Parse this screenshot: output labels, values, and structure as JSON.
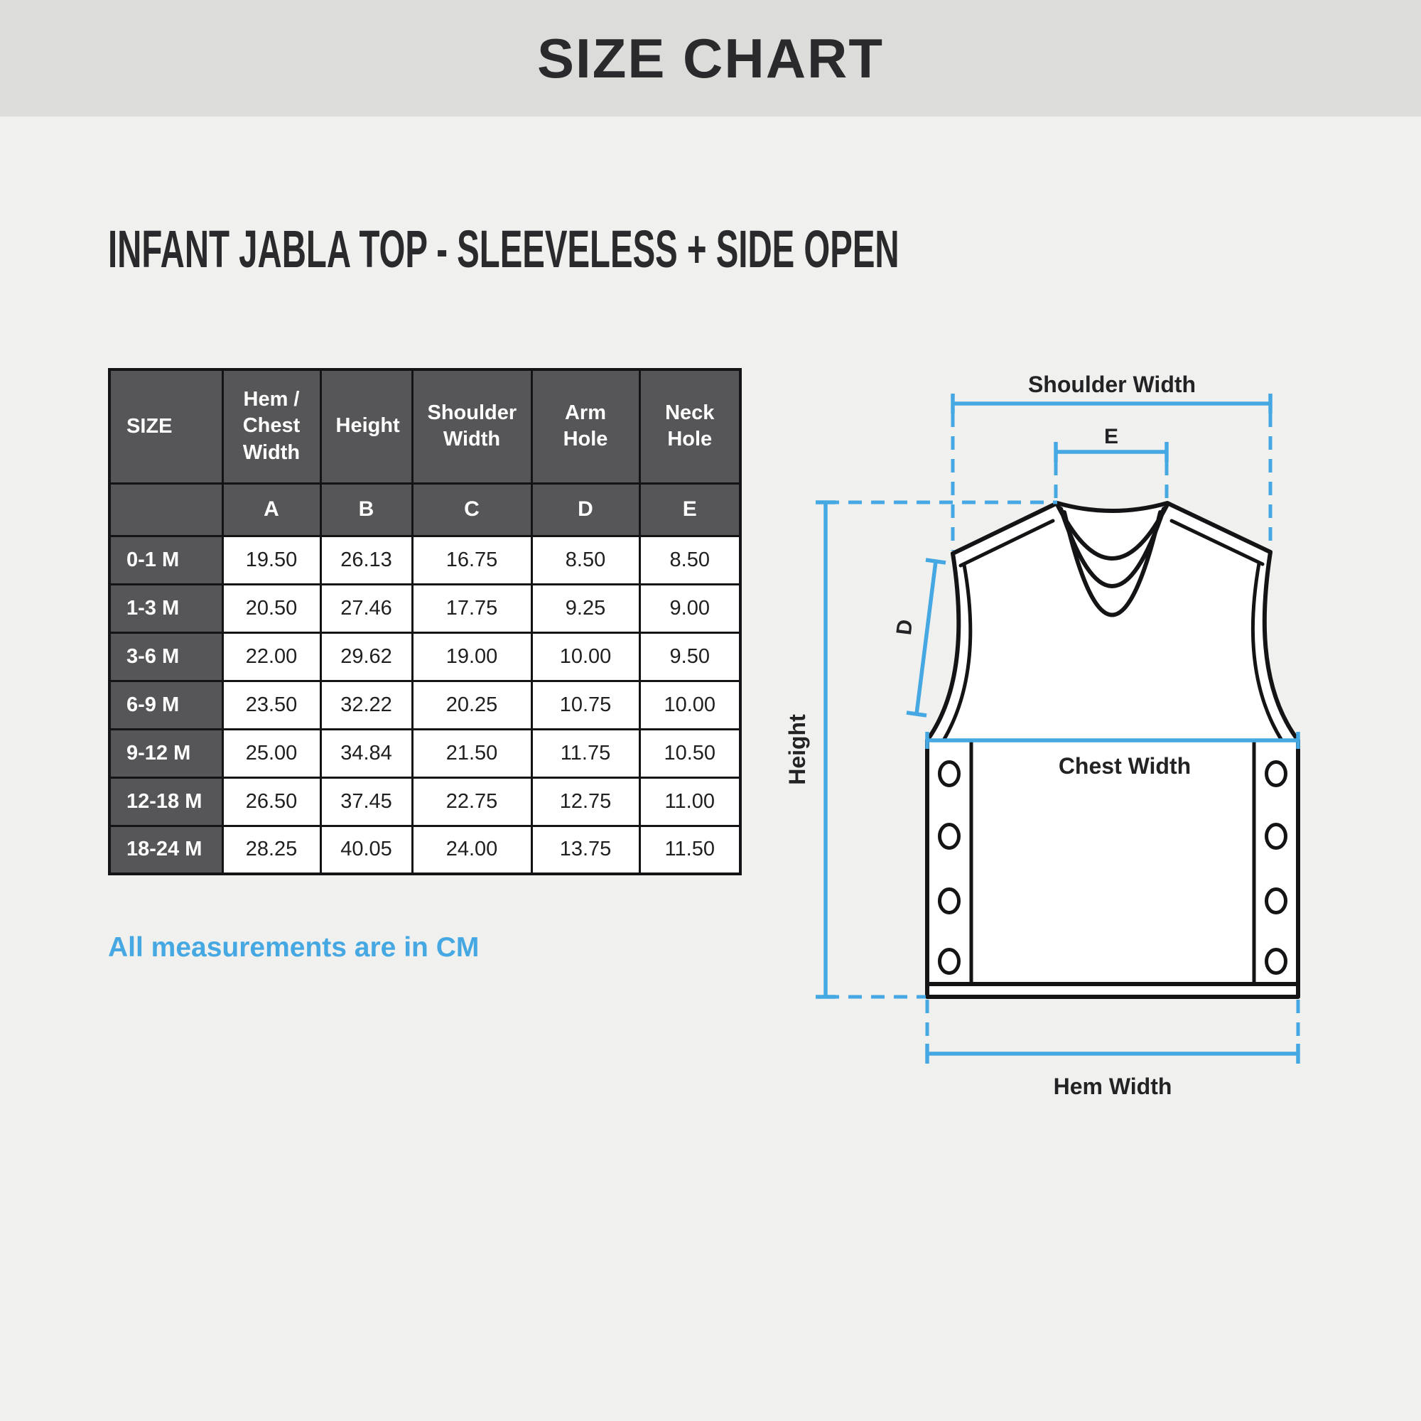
{
  "header": {
    "title": "SIZE CHART"
  },
  "product": {
    "title": "INFANT JABLA TOP - SLEEVELESS + SIDE OPEN"
  },
  "note": "All measurements are in CM",
  "colors": {
    "accent_blue": "#45a8e2",
    "table_header_gray": "#565659",
    "banner_gray": "#dcdcda",
    "page_bg": "#f0f0ee"
  },
  "chart_data": {
    "type": "table",
    "title": "SIZE CHART",
    "subtitle": "INFANT JABLA TOP - SLEEVELESS + SIDE OPEN",
    "unit": "CM",
    "columns": [
      "SIZE",
      "Hem / Chest Width",
      "Height",
      "Shoulder Width",
      "Arm Hole",
      "Neck Hole"
    ],
    "column_letters": [
      "",
      "A",
      "B",
      "C",
      "D",
      "E"
    ],
    "rows": [
      {
        "size": "0-1 M",
        "values": [
          "19.50",
          "26.13",
          "16.75",
          "8.50",
          "8.50"
        ]
      },
      {
        "size": "1-3 M",
        "values": [
          "20.50",
          "27.46",
          "17.75",
          "9.25",
          "9.00"
        ]
      },
      {
        "size": "3-6 M",
        "values": [
          "22.00",
          "29.62",
          "19.00",
          "10.00",
          "9.50"
        ]
      },
      {
        "size": "6-9 M",
        "values": [
          "23.50",
          "32.22",
          "20.25",
          "10.75",
          "10.00"
        ]
      },
      {
        "size": "9-12 M",
        "values": [
          "25.00",
          "34.84",
          "21.50",
          "11.75",
          "10.50"
        ]
      },
      {
        "size": "12-18 M",
        "values": [
          "26.50",
          "37.45",
          "22.75",
          "12.75",
          "11.00"
        ]
      },
      {
        "size": "18-24 M",
        "values": [
          "28.25",
          "40.05",
          "24.00",
          "13.75",
          "11.50"
        ]
      }
    ]
  },
  "diagram": {
    "labels": {
      "shoulder_width": "Shoulder Width",
      "e": "E",
      "d": "D",
      "height": "Height",
      "chest_width": "Chest Width",
      "hem_width": "Hem Width"
    }
  }
}
